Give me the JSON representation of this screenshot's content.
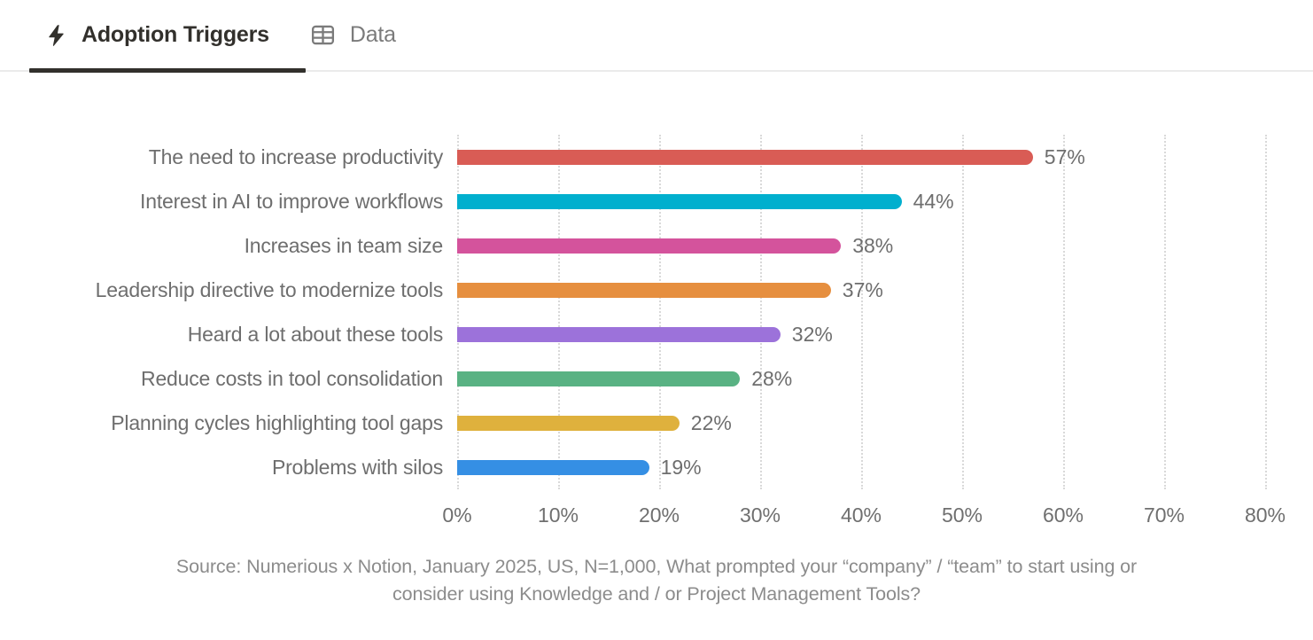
{
  "tabs": [
    {
      "label": "Adoption Triggers",
      "icon": "lightning-icon",
      "active": true
    },
    {
      "label": "Data",
      "icon": "table-icon",
      "active": false
    }
  ],
  "chart_data": {
    "type": "bar",
    "orientation": "horizontal",
    "title": "Adoption Triggers",
    "categories": [
      "The need to increase productivity",
      "Interest in AI to improve workflows",
      "Increases in team size",
      "Leadership directive to modernize tools",
      "Heard a lot about these tools",
      "Reduce costs in tool consolidation",
      "Planning cycles highlighting tool gaps",
      "Problems with silos"
    ],
    "values": [
      57,
      44,
      38,
      37,
      32,
      28,
      22,
      19
    ],
    "value_labels": [
      "57%",
      "44%",
      "38%",
      "37%",
      "32%",
      "28%",
      "22%",
      "19%"
    ],
    "colors": [
      "#D95C55",
      "#00AFCE",
      "#D4539C",
      "#E68F3F",
      "#9C72DA",
      "#59B283",
      "#DFB13D",
      "#358FE4"
    ],
    "x_ticks": [
      "0%",
      "10%",
      "20%",
      "30%",
      "40%",
      "50%",
      "60%",
      "70%",
      "80%"
    ],
    "xlim": [
      0,
      80
    ],
    "xlabel": "",
    "ylabel": "",
    "grid": "vertical-dotted",
    "legend": "none"
  },
  "source": {
    "line1": "Source: Numerious x Notion, January 2025, US, N=1,000, What prompted your “company” / “team” to start using or",
    "line2": "consider using Knowledge and / or Project Management Tools?"
  },
  "colors": {
    "bar_label_gray": "#6E6E6E",
    "tick_gray": "#6F6F6F",
    "source_gray": "#8C8C8C",
    "active_tab": "#32302C",
    "inactive_tab": "#7B7B7B",
    "gridline": "#D9D9D9",
    "header_border": "#EBEBEB"
  }
}
